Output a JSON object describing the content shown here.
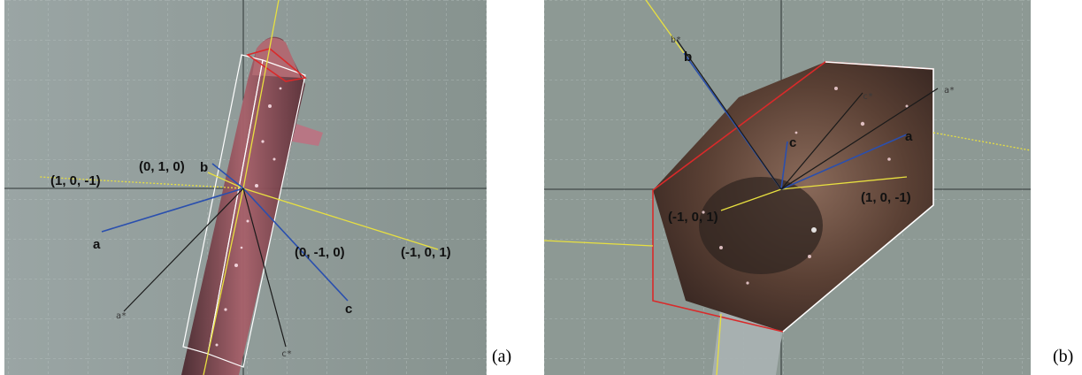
{
  "panel_a": {
    "caption": "(a)",
    "labels": {
      "hkl_010": "(0, 1, 0)",
      "b": "b",
      "hkl_10m1": "(1, 0, -1)",
      "a": "a",
      "hkl_0m10": "(0, -1, 0)",
      "hkl_m101": "(-1, 0, 1)",
      "c": "c",
      "a_star": "a*",
      "c_star": "c*"
    }
  },
  "panel_b": {
    "caption": "(b)",
    "labels": {
      "b_star": "b*",
      "b": "b",
      "c_star": "c*",
      "a_star": "a*",
      "c": "c",
      "a": "a",
      "hkl_m101": "(-1, 0, 1)",
      "hkl_10m1": "(1, 0, -1)"
    }
  },
  "colors": {
    "background": "#8f9b9a",
    "axis_blue": "#2a4fae",
    "axis_black": "#1a1a1a",
    "face_yellow": "#e8e040",
    "outline_red": "#d92a2a",
    "outline_white": "#ffffff"
  }
}
